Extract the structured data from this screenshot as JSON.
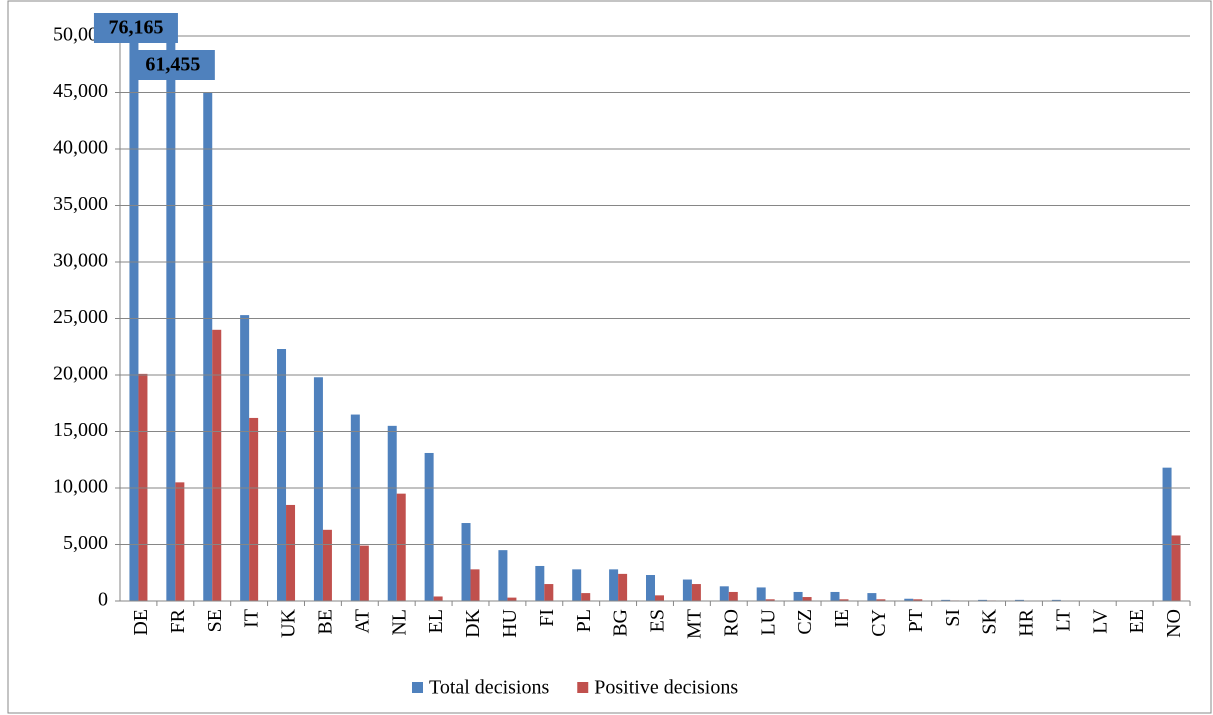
{
  "chart_data": {
    "type": "bar",
    "categories": [
      "DE",
      "FR",
      "SE",
      "IT",
      "UK",
      "BE",
      "AT",
      "NL",
      "EL",
      "DK",
      "HU",
      "FI",
      "PL",
      "BG",
      "ES",
      "MT",
      "RO",
      "LU",
      "CZ",
      "IE",
      "CY",
      "PT",
      "SI",
      "SK",
      "HR",
      "LT",
      "LV",
      "EE",
      "NO"
    ],
    "series": [
      {
        "name": "Total decisions",
        "color": "#4f81bd",
        "values": [
          76165,
          61455,
          45000,
          25300,
          22300,
          19800,
          16500,
          15500,
          13100,
          6900,
          4500,
          3100,
          2800,
          2800,
          2300,
          1900,
          1300,
          1200,
          800,
          800,
          700,
          200,
          100,
          100,
          100,
          100,
          30,
          20,
          11800
        ],
        "value_labels": [
          "76,165",
          "61,455",
          null,
          null,
          null,
          null,
          null,
          null,
          null,
          null,
          null,
          null,
          null,
          null,
          null,
          null,
          null,
          null,
          null,
          null,
          null,
          null,
          null,
          null,
          null,
          null,
          null,
          null,
          null
        ]
      },
      {
        "name": "Positive decisions",
        "color": "#c0504d",
        "values": [
          20100,
          10500,
          24000,
          16200,
          8500,
          6300,
          4900,
          9500,
          400,
          2800,
          300,
          1500,
          700,
          2400,
          500,
          1500,
          800,
          150,
          350,
          150,
          150,
          150,
          50,
          50,
          30,
          30,
          20,
          10,
          5800
        ]
      }
    ],
    "ylim": [
      0,
      50000
    ],
    "yticks": [
      0,
      {
        "value": 5000,
        "label": "5,000"
      },
      {
        "value": 10000,
        "label": "10,000"
      },
      {
        "value": 15000,
        "label": "15,000"
      },
      {
        "value": 20000,
        "label": "20,000"
      },
      {
        "value": 25000,
        "label": "25,000"
      },
      {
        "value": 30000,
        "label": "30,000"
      },
      {
        "value": 35000,
        "label": "35,000"
      },
      {
        "value": 40000,
        "label": "40,000"
      },
      {
        "value": 45000,
        "label": "45,000"
      },
      {
        "value": 50000,
        "label": "50,000"
      }
    ],
    "grid": true,
    "legend": "bottom"
  }
}
